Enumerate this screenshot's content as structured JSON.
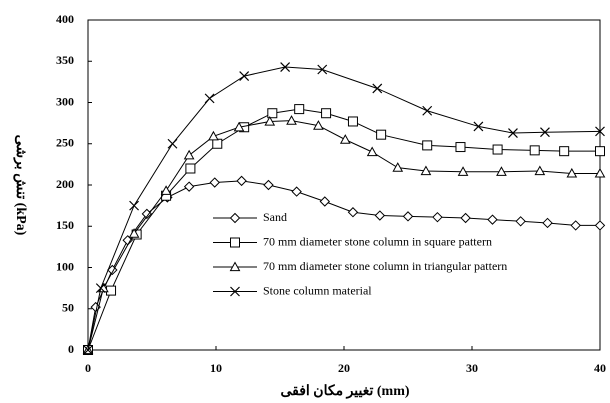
{
  "chart_data": {
    "type": "line",
    "xlabel": "تغییر مکان افقی (mm)",
    "ylabel": "تنش برشی (kPa)",
    "xlim": [
      0,
      40
    ],
    "xticks": [
      0,
      10,
      20,
      30,
      40
    ],
    "ylim": [
      0,
      400
    ],
    "yticks": [
      0,
      50,
      100,
      150,
      200,
      250,
      300,
      350,
      400
    ],
    "series": [
      {
        "name": "Sand",
        "color": "#000000",
        "marker": "diamond",
        "x": [
          0,
          0.6,
          1.9,
          3.1,
          4.6,
          6.2,
          7.9,
          9.9,
          12.0,
          14.1,
          16.3,
          18.5,
          20.7,
          22.8,
          25.0,
          27.3,
          29.5,
          31.6,
          33.8,
          35.9,
          38.1,
          40
        ],
        "values": [
          0,
          52,
          97,
          133,
          165,
          185,
          198,
          203,
          205,
          200,
          192,
          180,
          167,
          163,
          162,
          161,
          160,
          158,
          156,
          154,
          151,
          151
        ]
      },
      {
        "name": "70 mm diameter stone column in square pattern",
        "color": "#000000",
        "marker": "square",
        "x": [
          0,
          1.8,
          3.8,
          6.1,
          8.0,
          10.1,
          12.2,
          14.4,
          16.5,
          18.6,
          20.7,
          22.9,
          26.5,
          29.1,
          32.0,
          34.9,
          37.2,
          40
        ],
        "values": [
          0,
          72,
          140,
          187,
          220,
          250,
          270,
          287,
          292,
          287,
          277,
          261,
          248,
          246,
          243,
          242,
          241,
          241
        ]
      },
      {
        "name": "70 mm diameter stone column in triangular pattern",
        "color": "#000000",
        "marker": "triangle",
        "x": [
          0,
          1.2,
          3.6,
          6.1,
          7.9,
          9.8,
          11.8,
          14.2,
          15.9,
          18.0,
          20.1,
          22.2,
          24.2,
          26.4,
          29.3,
          32.3,
          35.3,
          37.8,
          40
        ],
        "values": [
          0,
          75,
          141,
          193,
          236,
          259,
          270,
          277,
          278,
          272,
          255,
          240,
          221,
          217,
          216,
          216,
          217,
          214,
          214
        ]
      },
      {
        "name": "Stone column material",
        "color": "#000000",
        "marker": "x",
        "x": [
          0,
          1.0,
          3.6,
          6.6,
          9.5,
          12.2,
          15.4,
          18.3,
          22.6,
          26.5,
          30.5,
          33.2,
          35.7,
          40
        ],
        "values": [
          0,
          75,
          175,
          250,
          305,
          332,
          343,
          340,
          317,
          290,
          271,
          263,
          264,
          265
        ]
      }
    ]
  }
}
